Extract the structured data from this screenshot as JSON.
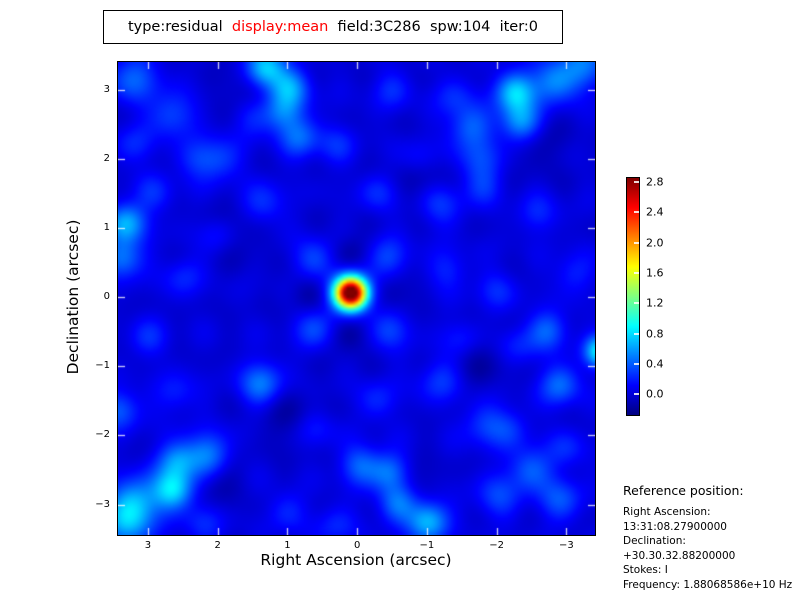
{
  "title": {
    "segments": [
      {
        "text": "type:residual  ",
        "color": "#000000"
      },
      {
        "text": "display:mean",
        "color": "#ff0000"
      },
      {
        "text": "  field:3C286  spw:104  iter:0",
        "color": "#000000"
      }
    ]
  },
  "chart_data": {
    "type": "heatmap",
    "xlabel": "Right Ascension (arcsec)",
    "ylabel": "Declination (arcsec)",
    "xlim": [
      3.43,
      -3.41
    ],
    "ylim": [
      -3.44,
      3.4
    ],
    "x_tick_values": [
      3,
      2,
      1,
      0,
      -1,
      -2,
      -3
    ],
    "x_tick_labels": [
      "3",
      "2",
      "1",
      "0",
      "−1",
      "−2",
      "−3"
    ],
    "y_tick_values": [
      3,
      2,
      1,
      0,
      -1,
      -2,
      -3
    ],
    "y_tick_labels": [
      "3",
      "2",
      "1",
      "0",
      "−1",
      "−2",
      "−3"
    ],
    "colormap": "jet",
    "vmin": -0.27,
    "vmax": 2.85,
    "background_value": 0.0,
    "colorbar_tick_values": [
      2.8,
      2.4,
      2.0,
      1.6,
      1.2,
      0.8,
      0.4,
      0.0
    ],
    "colorbar_tick_labels": [
      "2.8",
      "2.4",
      "2.0",
      "1.6",
      "1.2",
      "0.8",
      "0.4",
      "0.0"
    ],
    "peak": {
      "ra": 0.09,
      "dec": 0.06,
      "value": 2.85
    },
    "features": [
      [
        0.09,
        0.06,
        2.9,
        0.155
      ],
      [
        0.09,
        0.06,
        0.3,
        0.34
      ],
      [
        0.62,
        0.55,
        0.3,
        0.2
      ],
      [
        -0.45,
        0.57,
        0.3,
        0.2
      ],
      [
        0.62,
        -0.45,
        0.3,
        0.2
      ],
      [
        -0.47,
        -0.47,
        0.3,
        0.2
      ],
      [
        0.68,
        0.05,
        -0.22,
        0.2
      ],
      [
        -0.5,
        0.05,
        -0.22,
        0.2
      ],
      [
        0.09,
        0.62,
        -0.22,
        0.2
      ],
      [
        0.09,
        -0.52,
        -0.25,
        0.2
      ],
      [
        -1.19,
        1.33,
        0.28,
        0.22
      ],
      [
        -1.76,
        1.98,
        0.3,
        0.22
      ],
      [
        -1.62,
        2.46,
        0.4,
        0.22
      ],
      [
        -2.34,
        2.53,
        0.6,
        0.2
      ],
      [
        -2.27,
        2.96,
        0.75,
        0.2
      ],
      [
        -2.81,
        3.11,
        0.5,
        0.22
      ],
      [
        -3.25,
        3.35,
        0.45,
        0.25
      ],
      [
        1.36,
        1.33,
        0.28,
        0.22
      ],
      [
        1.99,
        1.98,
        0.3,
        0.22
      ],
      [
        2.65,
        2.63,
        0.35,
        0.22
      ],
      [
        3.19,
        3.16,
        0.4,
        0.25
      ],
      [
        1.36,
        -1.2,
        0.28,
        0.22
      ],
      [
        2.15,
        -2.28,
        0.5,
        0.22
      ],
      [
        2.58,
        -2.38,
        0.55,
        0.2
      ],
      [
        2.64,
        -2.79,
        0.78,
        0.2
      ],
      [
        3.19,
        -2.96,
        0.6,
        0.25
      ],
      [
        3.3,
        -3.3,
        0.5,
        0.25
      ],
      [
        -1.19,
        -1.2,
        0.28,
        0.22
      ],
      [
        -1.84,
        -1.85,
        0.3,
        0.22
      ],
      [
        -2.48,
        -2.5,
        0.4,
        0.22
      ],
      [
        -2.91,
        -2.93,
        0.35,
        0.22
      ],
      [
        -2.01,
        -2.89,
        0.3,
        0.22
      ],
      [
        1.32,
        3.31,
        0.8,
        0.2
      ],
      [
        0.96,
        3.03,
        0.55,
        0.2
      ],
      [
        1.06,
        2.67,
        0.45,
        0.2
      ],
      [
        0.82,
        2.31,
        0.4,
        0.2
      ],
      [
        -1.02,
        -3.24,
        0.7,
        0.2
      ],
      [
        -0.59,
        -2.98,
        0.5,
        0.2
      ],
      [
        -0.47,
        -2.53,
        0.5,
        0.2
      ],
      [
        -0.04,
        -2.43,
        0.4,
        0.2
      ],
      [
        3.31,
        1.07,
        0.65,
        0.2
      ],
      [
        3.37,
        0.56,
        0.5,
        0.2
      ],
      [
        3.41,
        -1.63,
        0.4,
        0.2
      ],
      [
        -3.5,
        -0.79,
        0.95,
        0.16
      ],
      [
        -2.91,
        -1.27,
        0.45,
        0.2
      ],
      [
        -2.74,
        -0.48,
        0.4,
        0.2
      ],
      [
        2.5,
        0.3,
        0.22,
        0.2
      ],
      [
        2.0,
        0.9,
        0.22,
        0.2
      ],
      [
        1.5,
        2.6,
        0.22,
        0.2
      ],
      [
        2.3,
        2.0,
        0.22,
        0.2
      ],
      [
        -0.3,
        1.5,
        0.22,
        0.2
      ],
      [
        -1.3,
        0.4,
        0.22,
        0.2
      ],
      [
        -2.0,
        0.1,
        0.22,
        0.2
      ],
      [
        -2.6,
        1.2,
        0.22,
        0.2
      ],
      [
        -3.1,
        0.35,
        0.22,
        0.2
      ],
      [
        -1.5,
        -0.6,
        0.22,
        0.2
      ],
      [
        -2.3,
        -0.7,
        0.22,
        0.2
      ],
      [
        -0.3,
        -1.5,
        0.22,
        0.2
      ],
      [
        0.6,
        -1.9,
        0.22,
        0.2
      ],
      [
        1.4,
        -1.3,
        0.22,
        0.2
      ],
      [
        2.6,
        -1.4,
        0.22,
        0.2
      ],
      [
        3.0,
        -0.6,
        0.22,
        0.2
      ],
      [
        0.3,
        2.2,
        0.22,
        0.2
      ],
      [
        -0.9,
        2.0,
        0.22,
        0.2
      ],
      [
        -1.8,
        1.6,
        0.22,
        0.2
      ],
      [
        -0.5,
        3.0,
        0.22,
        0.2
      ],
      [
        -1.4,
        2.9,
        0.22,
        0.2
      ],
      [
        -2.2,
        -1.9,
        0.22,
        0.2
      ],
      [
        -3.0,
        -2.2,
        0.22,
        0.2
      ],
      [
        1.0,
        -3.1,
        0.22,
        0.2
      ],
      [
        2.2,
        -3.25,
        0.22,
        0.2
      ],
      [
        0.3,
        -3.3,
        0.22,
        0.2
      ],
      [
        3.2,
        2.2,
        0.22,
        0.2
      ],
      [
        2.9,
        1.5,
        0.22,
        0.2
      ],
      [
        1.75,
        0.95,
        -0.15,
        0.3
      ],
      [
        -1.75,
        -0.9,
        -0.15,
        0.3
      ],
      [
        0.95,
        -1.75,
        -0.15,
        0.3
      ],
      [
        -0.95,
        1.75,
        -0.15,
        0.3
      ],
      [
        1.6,
        3.0,
        -0.15,
        0.25
      ],
      [
        -0.75,
        -2.7,
        -0.15,
        0.25
      ],
      [
        2.0,
        -2.7,
        -0.15,
        0.22
      ],
      [
        -2.6,
        2.2,
        -0.12,
        0.3
      ]
    ]
  },
  "reference": {
    "title": "Reference position:",
    "lines": [
      "Right Ascension: 13:31:08.27900000",
      "Declination: +30.30.32.88200000",
      "Stokes: I",
      "Frequency: 1.88068586e+10 Hz"
    ]
  }
}
